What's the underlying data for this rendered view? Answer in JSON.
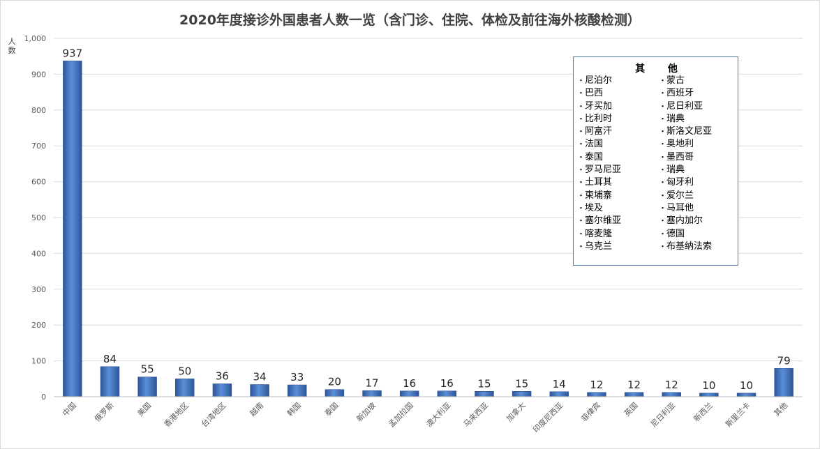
{
  "chart_data": {
    "type": "bar",
    "title": "2020年度接诊外国患者人数一览（含门诊、住院、体检及前往海外核酸检测）",
    "ylabel": "人数",
    "ylim": [
      0,
      1000
    ],
    "yticks": [
      0,
      100,
      200,
      300,
      400,
      500,
      600,
      700,
      800,
      900,
      1000
    ],
    "ytick_labels": [
      "0",
      "100",
      "200",
      "300",
      "400",
      "500",
      "600",
      "700",
      "800",
      "900",
      "1,000"
    ],
    "grid": true,
    "categories": [
      "中国",
      "俄罗斯",
      "美国",
      "香港地区",
      "台湾地区",
      "越南",
      "韩国",
      "泰国",
      "新加坡",
      "孟加拉国",
      "澳大利亚",
      "马来西亚",
      "加拿大",
      "印度尼西亚",
      "菲律宾",
      "英国",
      "尼日利亚",
      "新西兰",
      "斯里兰卡",
      "其他"
    ],
    "values": [
      937,
      84,
      55,
      50,
      36,
      34,
      33,
      20,
      17,
      16,
      16,
      15,
      15,
      14,
      12,
      12,
      12,
      10,
      10,
      79
    ],
    "colors": {
      "bar": "#4472c4",
      "bar_dark": "#2e5597",
      "grid": "#d9d9d9",
      "text": "#595959"
    }
  },
  "legend": {
    "title": "其 他",
    "left_column": [
      "尼泊尔",
      "巴西",
      "牙买加",
      "比利时",
      "阿富汗",
      "法国",
      "泰国",
      "罗马尼亚",
      "土耳其",
      "柬埔寨",
      "埃及",
      "塞尔维亚",
      "喀麦隆",
      "乌克兰"
    ],
    "right_column": [
      "蒙古",
      "西班牙",
      "尼日利亚",
      "瑞典",
      "斯洛文尼亚",
      "奥地利",
      "墨西哥",
      "瑞典",
      "匈牙利",
      "爱尔兰",
      "马耳他",
      "塞内加尔",
      "德国",
      "布基纳法索"
    ]
  }
}
